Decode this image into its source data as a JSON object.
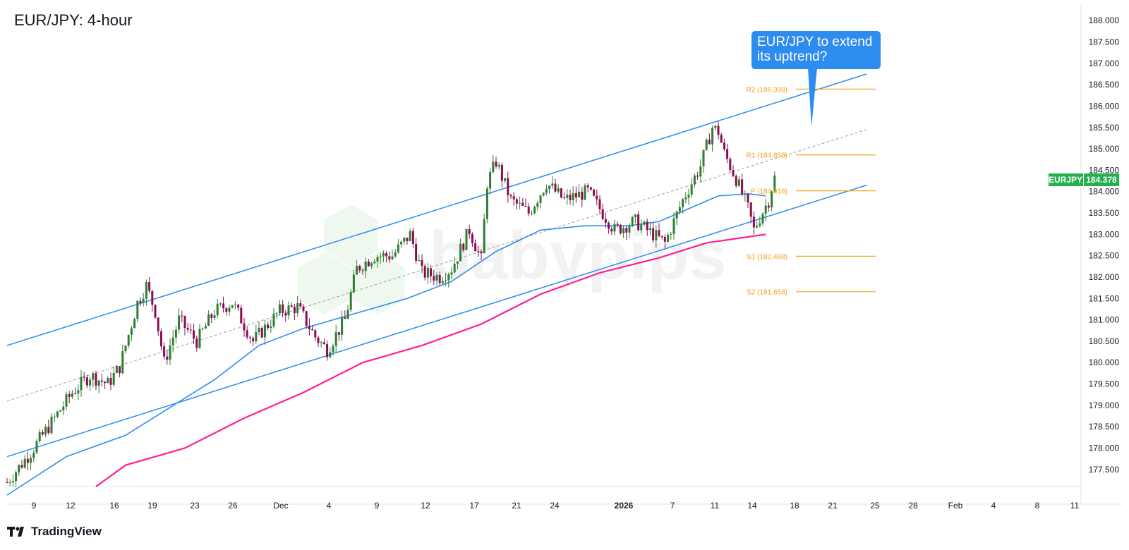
{
  "title": "EUR/JPY: 4-hour",
  "branding": {
    "platform": "TradingView",
    "watermark": "babypips"
  },
  "callout": {
    "line1": "EUR/JPY to extend",
    "line2": "its uptrend?"
  },
  "price_badge": {
    "symbol": "EURJPY",
    "value": "184.378"
  },
  "colors": {
    "up_candle": "#2e7d32",
    "down_candle": "#880e4f",
    "channel": "#2d8cf0",
    "ma_fast": "#2d8cf0",
    "ma_slow": "#ff1f8f",
    "pivot": "#f7a21b",
    "badge": "#22b14c",
    "callout": "#2d8cf0"
  },
  "chart_data": {
    "type": "candlestick",
    "title": "EUR/JPY: 4-hour",
    "ylim": [
      177.1,
      188.4
    ],
    "y_ticks": [
      "188.000",
      "187.500",
      "187.000",
      "186.500",
      "186.000",
      "185.500",
      "185.000",
      "184.500",
      "184.000",
      "183.500",
      "183.000",
      "182.500",
      "182.000",
      "181.500",
      "181.000",
      "180.500",
      "180.000",
      "179.500",
      "179.000",
      "178.500",
      "178.000",
      "177.500"
    ],
    "x_ticks": [
      {
        "label": "9",
        "bold": false
      },
      {
        "label": "12",
        "bold": false
      },
      {
        "label": "16",
        "bold": false
      },
      {
        "label": "19",
        "bold": false
      },
      {
        "label": "23",
        "bold": false
      },
      {
        "label": "26",
        "bold": false
      },
      {
        "label": "Dec",
        "bold": false
      },
      {
        "label": "4",
        "bold": false
      },
      {
        "label": "9",
        "bold": false
      },
      {
        "label": "12",
        "bold": false
      },
      {
        "label": "17",
        "bold": false
      },
      {
        "label": "21",
        "bold": false
      },
      {
        "label": "24",
        "bold": false
      },
      {
        "label": "2026",
        "bold": true
      },
      {
        "label": "7",
        "bold": false
      },
      {
        "label": "11",
        "bold": false
      },
      {
        "label": "14",
        "bold": false
      },
      {
        "label": "18",
        "bold": false
      },
      {
        "label": "21",
        "bold": false
      },
      {
        "label": "25",
        "bold": false
      },
      {
        "label": "28",
        "bold": false
      },
      {
        "label": "Feb",
        "bold": false
      },
      {
        "label": "4",
        "bold": false
      },
      {
        "label": "8",
        "bold": false
      },
      {
        "label": "11",
        "bold": false
      }
    ],
    "last_price": 184.378,
    "price_path": [
      [
        0,
        177.2
      ],
      [
        8,
        177.9
      ],
      [
        15,
        178.6
      ],
      [
        22,
        179.3
      ],
      [
        28,
        179.7
      ],
      [
        34,
        179.5
      ],
      [
        38,
        179.9
      ],
      [
        44,
        181.4
      ],
      [
        47,
        181.8
      ],
      [
        50,
        181.2
      ],
      [
        53,
        180.0
      ],
      [
        58,
        181.0
      ],
      [
        64,
        180.5
      ],
      [
        70,
        181.2
      ],
      [
        76,
        181.4
      ],
      [
        83,
        180.5
      ],
      [
        92,
        181.2
      ],
      [
        98,
        181.3
      ],
      [
        104,
        180.6
      ],
      [
        108,
        180.3
      ],
      [
        114,
        181.0
      ],
      [
        118,
        182.2
      ],
      [
        124,
        182.5
      ],
      [
        130,
        182.5
      ],
      [
        136,
        183.0
      ],
      [
        140,
        182.1
      ],
      [
        146,
        182.0
      ],
      [
        150,
        182.2
      ],
      [
        156,
        183.1
      ],
      [
        160,
        182.4
      ],
      [
        162,
        184.2
      ],
      [
        165,
        184.7
      ],
      [
        170,
        183.8
      ],
      [
        176,
        183.5
      ],
      [
        182,
        184.2
      ],
      [
        188,
        183.8
      ],
      [
        196,
        184.0
      ],
      [
        200,
        183.6
      ],
      [
        205,
        183.1
      ],
      [
        212,
        183.3
      ],
      [
        218,
        183.0
      ],
      [
        222,
        182.8
      ],
      [
        228,
        183.8
      ],
      [
        234,
        184.6
      ],
      [
        238,
        185.5
      ],
      [
        240,
        185.4
      ],
      [
        242,
        184.9
      ],
      [
        246,
        184.3
      ],
      [
        250,
        183.6
      ],
      [
        252,
        183.1
      ],
      [
        254,
        183.4
      ],
      [
        257,
        183.8
      ],
      [
        259,
        184.378
      ]
    ],
    "moving_average_fast": [
      [
        0,
        176.9
      ],
      [
        20,
        177.8
      ],
      [
        40,
        178.3
      ],
      [
        55,
        178.95
      ],
      [
        70,
        179.6
      ],
      [
        85,
        180.4
      ],
      [
        100,
        180.8
      ],
      [
        120,
        181.2
      ],
      [
        135,
        181.5
      ],
      [
        150,
        181.9
      ],
      [
        165,
        182.6
      ],
      [
        180,
        183.1
      ],
      [
        195,
        183.2
      ],
      [
        210,
        183.2
      ],
      [
        220,
        183.3
      ],
      [
        230,
        183.6
      ],
      [
        240,
        183.9
      ],
      [
        250,
        183.95
      ],
      [
        256,
        183.9
      ]
    ],
    "moving_average_slow": [
      [
        30,
        177.1
      ],
      [
        40,
        177.6
      ],
      [
        60,
        178.0
      ],
      [
        80,
        178.7
      ],
      [
        100,
        179.3
      ],
      [
        120,
        180.0
      ],
      [
        140,
        180.4
      ],
      [
        160,
        180.9
      ],
      [
        180,
        181.6
      ],
      [
        200,
        182.1
      ],
      [
        220,
        182.45
      ],
      [
        236,
        182.8
      ],
      [
        256,
        183.0
      ]
    ],
    "channel_upper": [
      [
        0,
        180.4
      ],
      [
        290,
        186.75
      ]
    ],
    "channel_lower": [
      [
        0,
        177.8
      ],
      [
        290,
        184.15
      ]
    ],
    "channel_mid": [
      [
        0,
        179.1
      ],
      [
        290,
        185.45
      ]
    ],
    "pivot_levels": [
      {
        "label": "R2 (186.398)",
        "value": 186.398
      },
      {
        "label": "R1 (184.858)",
        "value": 184.858
      },
      {
        "label": "P (184.018)",
        "value": 184.018
      },
      {
        "label": "S1 (182.488)",
        "value": 182.488
      },
      {
        "label": "S2 (181.658)",
        "value": 181.658
      }
    ]
  }
}
